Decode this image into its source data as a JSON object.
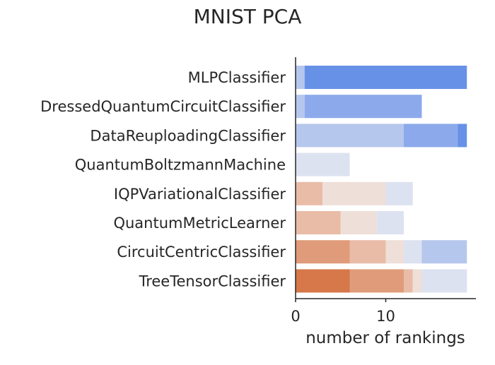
{
  "chart_data": {
    "type": "bar",
    "orientation": "horizontal",
    "stacked": true,
    "title": "MNIST PCA",
    "xlabel": "number of rankings",
    "ylabel": "",
    "xlim": [
      0,
      20
    ],
    "xticks": [
      0,
      10
    ],
    "xtick_labels": [
      "0",
      "10"
    ],
    "grid": false,
    "legend": "none",
    "categories": [
      "MLPClassifier",
      "DressedQuantumCircuitClassifier",
      "DataReuploadingClassifier",
      "QuantumBoltzmannMachine",
      "IQPVariationalClassifier",
      "QuantumMetricLearner",
      "CircuitCentricClassifier",
      "TreeTensorClassifier"
    ],
    "series": [
      {
        "color": "#d6784a",
        "values": [
          0,
          0,
          0,
          0,
          0,
          0,
          0,
          6
        ]
      },
      {
        "color": "#e09c7a",
        "values": [
          0,
          0,
          0,
          0,
          0,
          0,
          6,
          6
        ]
      },
      {
        "color": "#e9bca8",
        "values": [
          0,
          0,
          0,
          0,
          3,
          5,
          4,
          1
        ]
      },
      {
        "color": "#eedfd9",
        "values": [
          0,
          0,
          0,
          0,
          7,
          4,
          2,
          1
        ]
      },
      {
        "color": "#dde2f0",
        "values": [
          0,
          0,
          0,
          6,
          3,
          3,
          2,
          5
        ]
      },
      {
        "color": "#b6c7ed",
        "values": [
          1,
          1,
          12,
          0,
          0,
          0,
          5,
          0
        ]
      },
      {
        "color": "#8caaeb",
        "values": [
          0,
          13,
          6,
          0,
          0,
          0,
          0,
          0
        ]
      },
      {
        "color": "#6791e6",
        "values": [
          18,
          0,
          1,
          0,
          0,
          0,
          0,
          0
        ]
      }
    ]
  }
}
